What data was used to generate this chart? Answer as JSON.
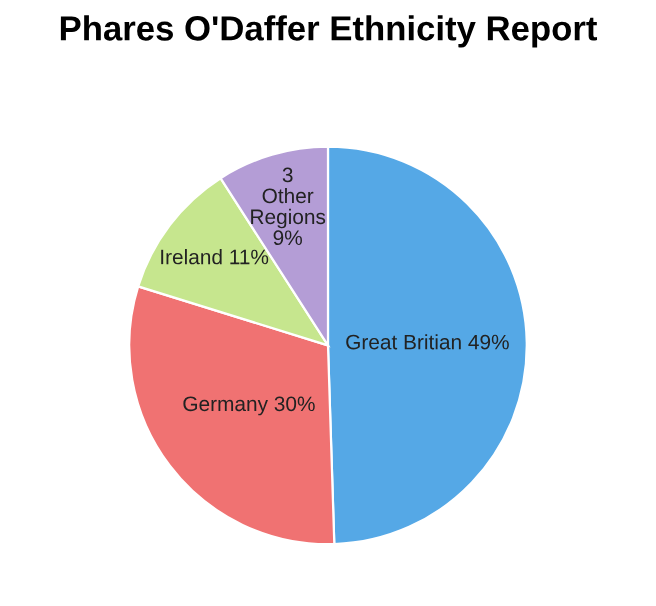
{
  "chart_data": {
    "type": "pie",
    "title": "Phares O'Daffer Ethnicity Report",
    "categories": [
      "Great Britian",
      "Germany",
      "Ireland",
      "3 Other Regions"
    ],
    "values": [
      49,
      30,
      11,
      9
    ],
    "value_labels": [
      "49%",
      "30%",
      "11%",
      "9%"
    ],
    "colors": [
      "#55a8e6",
      "#f07272",
      "#c6e68e",
      "#b49dd6"
    ]
  }
}
